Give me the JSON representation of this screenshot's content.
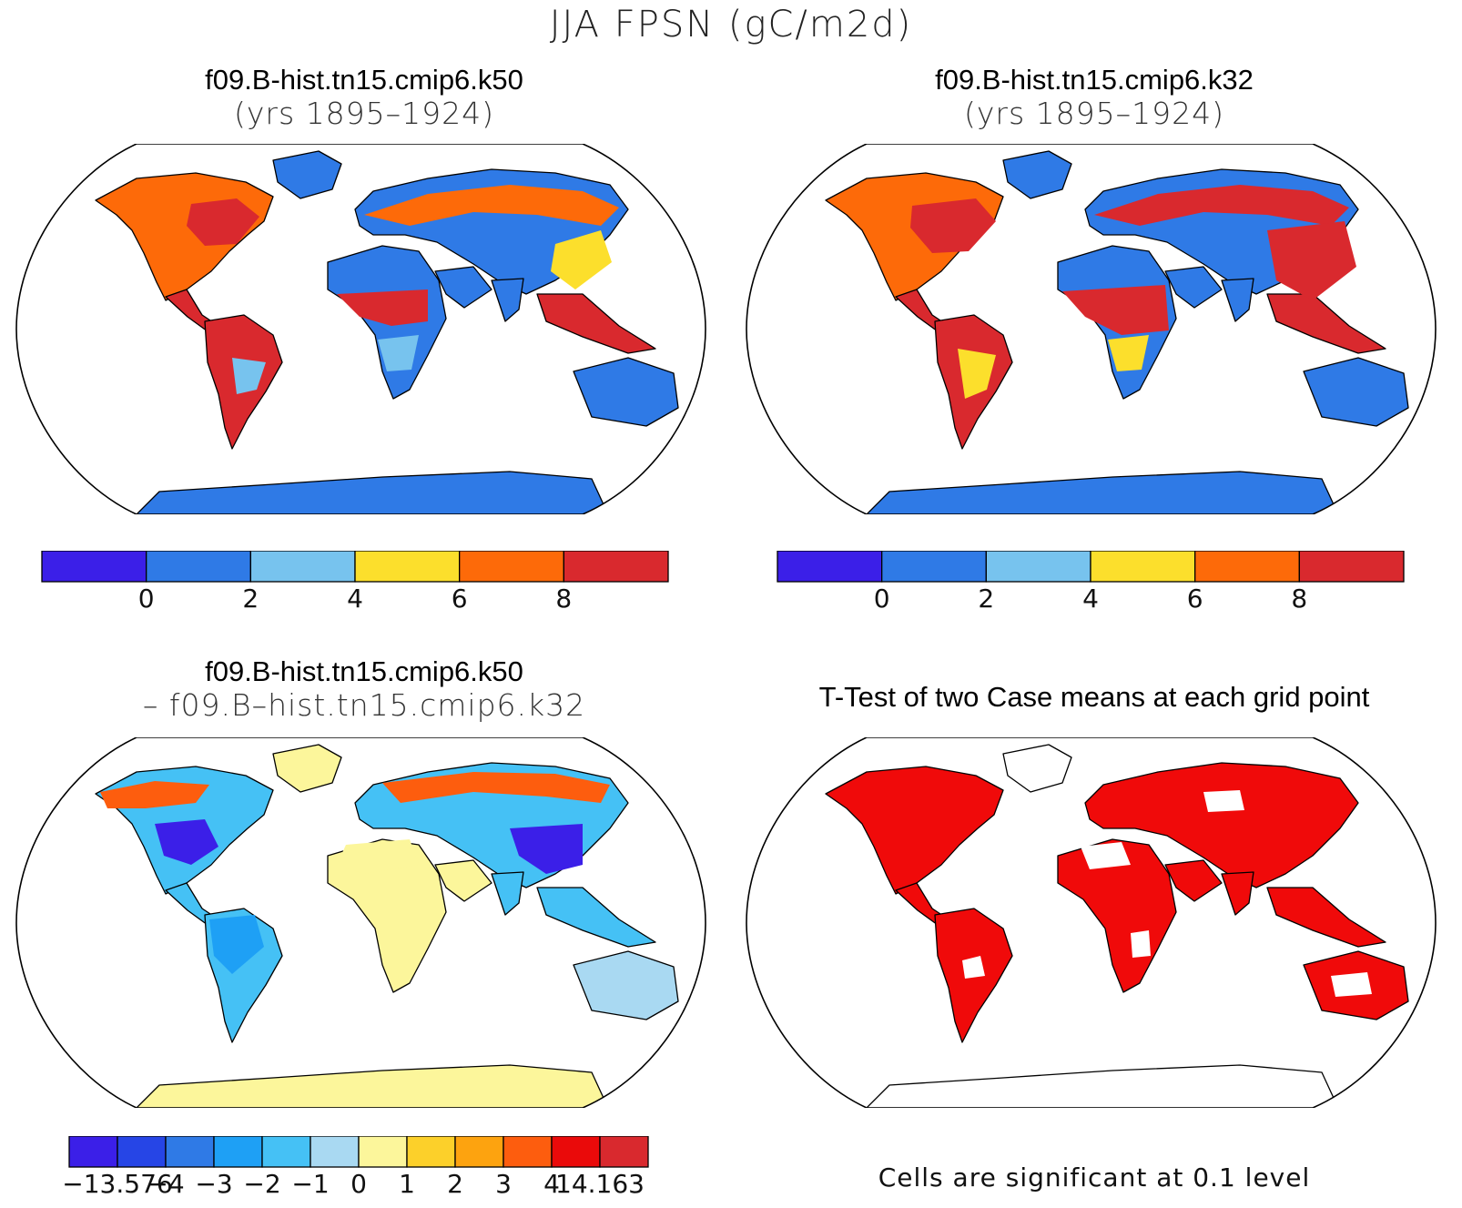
{
  "figure": {
    "title": "JJA FPSN (gC/m2d)"
  },
  "panels": [
    {
      "id": "k50",
      "title_line1": "f09.B-hist.tn15.cmip6.k50",
      "title_line2": "(yrs 1895–1924)",
      "colorbar": {
        "colors": [
          "#3b1fe8",
          "#2f7ae6",
          "#77c3ee",
          "#fcdf2c",
          "#fd6a09",
          "#d9292e"
        ],
        "tick_labels": [
          "0",
          "2",
          "4",
          "6",
          "8"
        ]
      }
    },
    {
      "id": "k32",
      "title_line1": "f09.B-hist.tn15.cmip6.k32",
      "title_line2": "(yrs 1895–1924)",
      "colorbar": {
        "colors": [
          "#3b1fe8",
          "#2f7ae6",
          "#77c3ee",
          "#fcdf2c",
          "#fd6a09",
          "#d9292e"
        ],
        "tick_labels": [
          "0",
          "2",
          "4",
          "6",
          "8"
        ]
      }
    },
    {
      "id": "diff",
      "title_line1": "f09.B-hist.tn15.cmip6.k50",
      "title_line2": "– f09.B–hist.tn15.cmip6.k32",
      "colorbar": {
        "colors": [
          "#3b1fe8",
          "#2645e6",
          "#2f7ae6",
          "#1ea0f5",
          "#45c1f5",
          "#a9d9f2",
          "#fcf69b",
          "#fcd02a",
          "#fda30f",
          "#fd5d0e",
          "#ea0a0a",
          "#d9292e"
        ],
        "tick_labels": [
          "−13.576",
          "−4",
          "−3",
          "−2",
          "−1",
          "0",
          "1",
          "2",
          "3",
          "4",
          "14.163"
        ]
      }
    },
    {
      "id": "ttest",
      "title_line1": "T-Test of two Case means at each grid point",
      "note": "Cells are significant at 0.1 level",
      "significant_color": "#f00a0a"
    }
  ]
}
